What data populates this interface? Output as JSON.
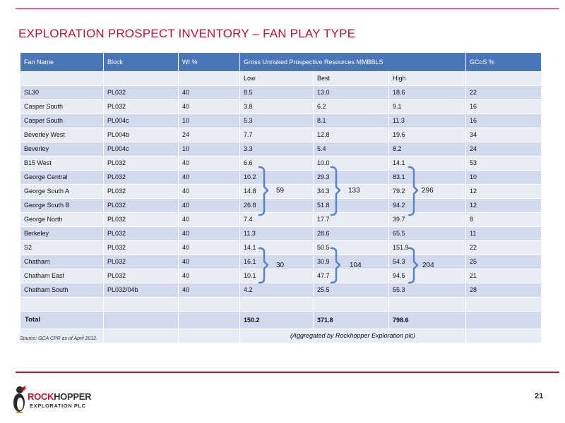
{
  "title": "EXPLORATION PROSPECT INVENTORY – FAN PLAY TYPE",
  "table": {
    "headers": {
      "fan_name": "Fan Name",
      "block": "Block",
      "wi": "WI %",
      "resources": "Gross Unrisked Prospective Resources MMBBLS",
      "gcos": "GCoS %"
    },
    "subheaders": {
      "low": "Low",
      "best": "Best",
      "high": "High"
    },
    "rows": [
      {
        "name": "SL30",
        "block": "PL032",
        "wi": "40",
        "low": "8.5",
        "best": "13.0",
        "high": "18.6",
        "gcos": "22"
      },
      {
        "name": "Casper South",
        "block": "PL032",
        "wi": "40",
        "low": "3.8",
        "best": "6.2",
        "high": "9.1",
        "gcos": "16"
      },
      {
        "name": "Casper South",
        "block": "PL004c",
        "wi": "10",
        "low": "5.3",
        "best": "8.1",
        "high": "11.3",
        "gcos": "16"
      },
      {
        "name": "Beverley West",
        "block": "PL004b",
        "wi": "24",
        "low": "7.7",
        "best": "12.8",
        "high": "19.6",
        "gcos": "34"
      },
      {
        "name": "Beverley",
        "block": "PL004c",
        "wi": "10",
        "low": "3.3",
        "best": "5.4",
        "high": "8.2",
        "gcos": "24"
      },
      {
        "name": "B15 West",
        "block": "PL032",
        "wi": "40",
        "low": "6.6",
        "best": "10.0",
        "high": "14.1",
        "gcos": "53"
      },
      {
        "name": "George Central",
        "block": "PL032",
        "wi": "40",
        "low": "10.2",
        "best": "29.3",
        "high": "83.1",
        "gcos": "10"
      },
      {
        "name": "George South A",
        "block": "PL032",
        "wi": "40",
        "low": "14.8",
        "best": "34.3",
        "high": "79.2",
        "gcos": "12"
      },
      {
        "name": "George South B",
        "block": "PL032",
        "wi": "40",
        "low": "26.8",
        "best": "51.8",
        "high": "94.2",
        "gcos": "12"
      },
      {
        "name": "George North",
        "block": "PL032",
        "wi": "40",
        "low": "7.4",
        "best": "17.7",
        "high": "39.7",
        "gcos": "8"
      },
      {
        "name": "Berkeley",
        "block": "PL032",
        "wi": "40",
        "low": "11.3",
        "best": "28.6",
        "high": "65.5",
        "gcos": "11"
      },
      {
        "name": "S2",
        "block": "PL032",
        "wi": "40",
        "low": "14.1",
        "best": "50.5",
        "high": "151.9",
        "gcos": "22"
      },
      {
        "name": "Chatham",
        "block": "PL032",
        "wi": "40",
        "low": "16.1",
        "best": "30.9",
        "high": "54.3",
        "gcos": "25"
      },
      {
        "name": "Chatham East",
        "block": "PL032",
        "wi": "40",
        "low": "10.1",
        "best": "47.7",
        "high": "94.5",
        "gcos": "21"
      },
      {
        "name": "Chatham South",
        "block": "PL032/04b",
        "wi": "40",
        "low": "4.2",
        "best": "25.5",
        "high": "55.3",
        "gcos": "28"
      }
    ],
    "total": {
      "label": "Total",
      "low": "150.2",
      "best": "371.8",
      "high": "798.6"
    },
    "note": "(Aggregated by Rockhopper Exploration plc)"
  },
  "groups": {
    "george": {
      "low": "59",
      "best": "133",
      "high": "296"
    },
    "chatham": {
      "low": "30",
      "best": "104",
      "high": "204"
    }
  },
  "source": "Source: GCA CPR as of April 2012.",
  "page_number": "21",
  "logo": {
    "line1_highlight": "ROCK",
    "line1_rest": "HOPPER",
    "line2": "EXPLORATION PLC"
  },
  "colors": {
    "accent": "#c0152b",
    "header_bg": "#4a76b8",
    "row_light": "#e8ecf5",
    "row_dark": "#d1dbed",
    "bracket": "#5b84c4"
  }
}
